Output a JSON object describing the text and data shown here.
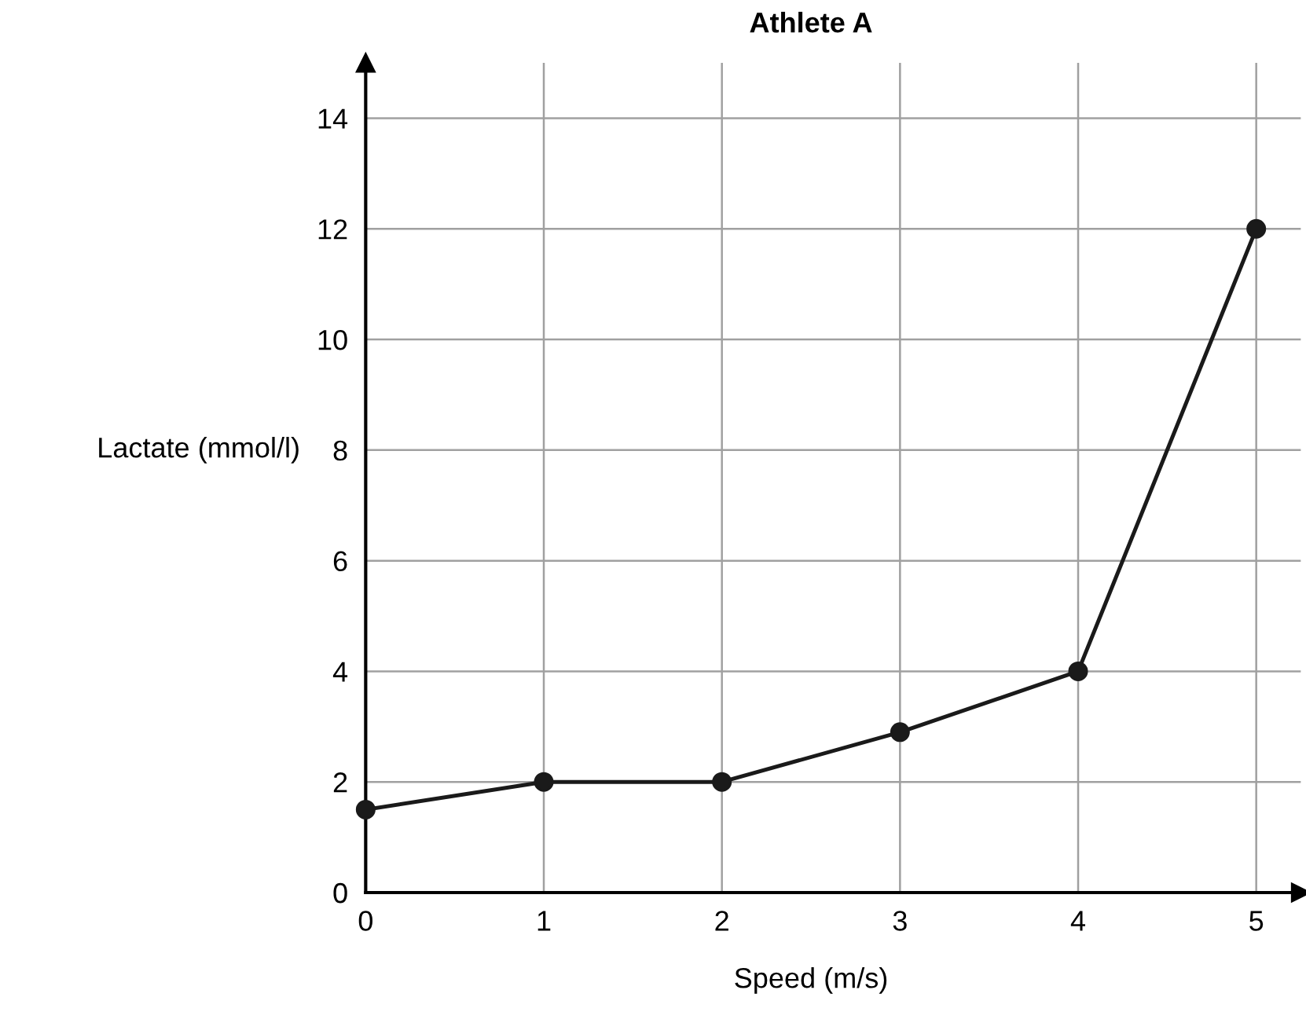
{
  "chart_data": {
    "type": "line",
    "title": "Athlete A",
    "xlabel": "Speed (m/s)",
    "ylabel": "Lactate (mmol/l)",
    "x": [
      0,
      1,
      2,
      3,
      4,
      5
    ],
    "series": [
      {
        "color": "#1a1a1a",
        "values": [
          1.5,
          2,
          2,
          2.9,
          4,
          12
        ]
      }
    ],
    "xlim": [
      0,
      5.25
    ],
    "ylim": [
      0,
      15
    ],
    "xticks": [
      0,
      1,
      2,
      3,
      4,
      5
    ],
    "yticks": [
      0,
      2,
      4,
      6,
      8,
      10,
      12,
      14
    ],
    "grid": true,
    "marker": "circle",
    "line_style": "solid"
  }
}
